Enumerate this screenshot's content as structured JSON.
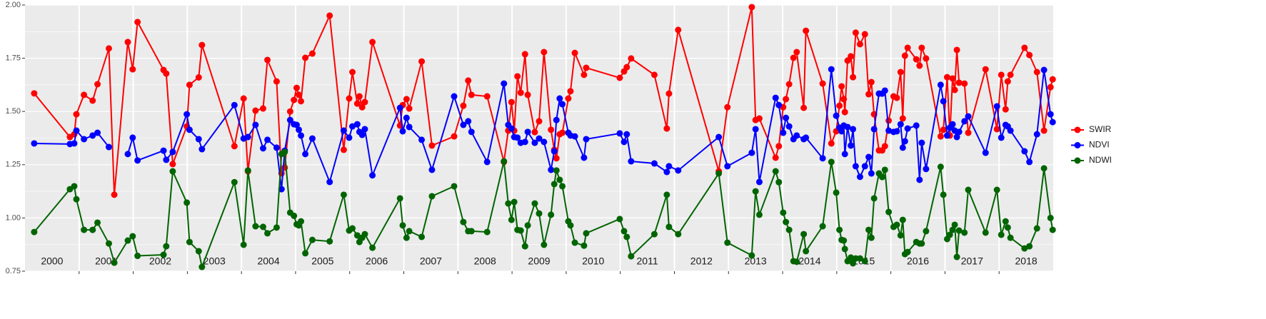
{
  "chart_data": {
    "type": "line",
    "x": [
      2000.17,
      2000.83,
      2000.91,
      2000.95,
      2001.09,
      2001.25,
      2001.34,
      2001.55,
      2001.65,
      2001.9,
      2001.99,
      2002.08,
      2002.56,
      2002.61,
      2002.73,
      2002.99,
      2003.04,
      2003.21,
      2003.27,
      2003.87,
      2004.04,
      2004.12,
      2004.26,
      2004.4,
      2004.48,
      2004.65,
      2004.74,
      2004.8,
      2004.9,
      2004.97,
      2005.02,
      2005.06,
      2005.1,
      2005.18,
      2005.31,
      2005.63,
      2005.89,
      2005.99,
      2006.05,
      2006.14,
      2006.18,
      2006.23,
      2006.28,
      2006.42,
      2006.93,
      2006.98,
      2007.05,
      2007.1,
      2007.33,
      2007.52,
      2007.93,
      2008.1,
      2008.19,
      2008.25,
      2008.54,
      2008.85,
      2008.93,
      2008.99,
      2009.04,
      2009.1,
      2009.16,
      2009.24,
      2009.29,
      2009.42,
      2009.5,
      2009.59,
      2009.72,
      2009.78,
      2009.82,
      2009.88,
      2009.93,
      2010.04,
      2010.08,
      2010.16,
      2010.33,
      2010.37,
      2010.99,
      2011.07,
      2011.12,
      2011.2,
      2011.63,
      2011.86,
      2011.9,
      2012.07,
      2012.82,
      2012.98,
      2013.43,
      2013.5,
      2013.57,
      2013.87,
      2013.93,
      2014.01,
      2014.06,
      2014.12,
      2014.2,
      2014.26,
      2014.39,
      2014.43,
      2014.74,
      2014.9,
      2014.99,
      2015.05,
      2015.09,
      2015.13,
      2015.15,
      2015.2,
      2015.26,
      2015.3,
      2015.35,
      2015.43,
      2015.52,
      2015.59,
      2015.64,
      2015.69,
      2015.78,
      2015.84,
      2015.89,
      2015.96,
      2016.05,
      2016.11,
      2016.18,
      2016.22,
      2016.26,
      2016.31,
      2016.47,
      2016.53,
      2016.57,
      2016.65,
      2016.92,
      2016.97,
      2017.04,
      2017.09,
      2017.14,
      2017.18,
      2017.22,
      2017.26,
      2017.36,
      2017.43,
      2017.75,
      2017.96,
      2018.04,
      2018.12,
      2018.16,
      2018.21,
      2018.47,
      2018.56,
      2018.7,
      2018.83,
      2018.95,
      2018.99
    ],
    "series": [
      {
        "name": "SWIR",
        "color": "#ff0000",
        "values": [
          1.585,
          1.38,
          1.393,
          1.487,
          1.578,
          1.551,
          1.628,
          1.796,
          1.109,
          1.826,
          1.698,
          1.92,
          1.695,
          1.678,
          1.253,
          1.43,
          1.625,
          1.66,
          1.812,
          1.337,
          1.561,
          1.219,
          1.504,
          1.514,
          1.742,
          1.641,
          1.209,
          1.236,
          1.5,
          1.554,
          1.611,
          1.578,
          1.548,
          1.752,
          1.772,
          1.95,
          1.32,
          1.561,
          1.685,
          1.537,
          1.571,
          1.52,
          1.544,
          1.826,
          1.434,
          1.53,
          1.558,
          1.514,
          1.735,
          1.34,
          1.383,
          1.527,
          1.645,
          1.578,
          1.571,
          1.263,
          1.41,
          1.544,
          1.41,
          1.665,
          1.588,
          1.769,
          1.578,
          1.403,
          1.454,
          1.779,
          1.414,
          1.32,
          1.28,
          1.393,
          1.4,
          1.561,
          1.595,
          1.775,
          1.672,
          1.705,
          1.658,
          1.688,
          1.708,
          1.749,
          1.672,
          1.42,
          1.584,
          1.883,
          1.219,
          1.52,
          1.99,
          1.46,
          1.467,
          1.283,
          1.337,
          1.52,
          1.558,
          1.628,
          1.752,
          1.779,
          1.517,
          1.879,
          1.631,
          1.35,
          1.407,
          1.527,
          1.618,
          1.558,
          1.497,
          1.739,
          1.759,
          1.661,
          1.87,
          1.816,
          1.863,
          1.581,
          1.638,
          1.487,
          1.317,
          1.317,
          1.337,
          1.457,
          1.571,
          1.564,
          1.685,
          1.467,
          1.762,
          1.799,
          1.745,
          1.715,
          1.799,
          1.749,
          1.383,
          1.414,
          1.661,
          1.387,
          1.655,
          1.601,
          1.789,
          1.635,
          1.631,
          1.4,
          1.698,
          1.417,
          1.672,
          1.51,
          1.641,
          1.672,
          1.799,
          1.765,
          1.685,
          1.41,
          1.614,
          1.651
        ]
      },
      {
        "name": "NDVI",
        "color": "#0000ff",
        "values": [
          1.35,
          1.347,
          1.35,
          1.41,
          1.37,
          1.387,
          1.4,
          1.333,
          null,
          1.3,
          1.377,
          1.27,
          1.316,
          1.273,
          1.31,
          1.487,
          1.414,
          1.37,
          1.323,
          1.53,
          1.373,
          1.38,
          1.437,
          1.327,
          1.367,
          1.33,
          1.135,
          1.316,
          1.46,
          1.44,
          1.437,
          1.414,
          1.387,
          1.3,
          1.373,
          1.169,
          1.41,
          1.377,
          1.43,
          1.44,
          1.404,
          1.39,
          1.417,
          1.2,
          1.517,
          1.407,
          1.47,
          1.427,
          1.367,
          1.226,
          1.571,
          1.437,
          1.454,
          1.404,
          1.263,
          1.631,
          1.437,
          1.42,
          1.38,
          1.377,
          1.353,
          1.357,
          1.404,
          1.353,
          1.373,
          1.357,
          1.226,
          1.313,
          1.46,
          1.561,
          1.534,
          1.4,
          1.387,
          1.383,
          1.283,
          1.37,
          1.397,
          1.357,
          1.393,
          1.266,
          1.256,
          1.216,
          1.243,
          1.223,
          1.38,
          1.243,
          1.306,
          1.417,
          1.169,
          1.564,
          1.53,
          1.4,
          1.47,
          1.43,
          1.37,
          1.387,
          1.37,
          1.377,
          1.28,
          1.698,
          1.48,
          1.424,
          1.407,
          1.434,
          1.3,
          1.427,
          1.34,
          1.417,
          1.243,
          1.193,
          1.243,
          1.286,
          1.209,
          1.417,
          1.584,
          1.584,
          1.598,
          1.41,
          1.404,
          1.407,
          1.44,
          1.33,
          1.36,
          1.42,
          1.434,
          1.179,
          1.353,
          1.23,
          1.625,
          1.548,
          1.387,
          1.424,
          1.44,
          1.41,
          1.38,
          1.404,
          1.454,
          1.477,
          1.306,
          1.524,
          1.377,
          1.437,
          1.43,
          1.41,
          1.313,
          1.263,
          1.393,
          1.695,
          1.487,
          1.45
        ]
      },
      {
        "name": "NDWI",
        "color": "#006400",
        "values": [
          0.934,
          1.135,
          1.149,
          1.088,
          0.944,
          0.944,
          0.978,
          0.88,
          0.79,
          0.894,
          0.914,
          0.822,
          0.827,
          0.867,
          1.219,
          1.072,
          0.887,
          0.844,
          0.77,
          1.168,
          0.874,
          1.223,
          0.961,
          0.958,
          0.928,
          0.955,
          1.3,
          1.31,
          1.025,
          1.01,
          0.97,
          0.965,
          0.984,
          0.834,
          0.897,
          0.89,
          1.109,
          0.941,
          0.951,
          0.918,
          0.887,
          0.907,
          0.924,
          0.86,
          1.092,
          0.965,
          0.907,
          0.938,
          0.911,
          1.102,
          1.149,
          0.981,
          0.938,
          0.938,
          0.934,
          1.266,
          1.068,
          0.991,
          1.075,
          0.944,
          0.941,
          0.867,
          0.965,
          1.068,
          1.021,
          0.874,
          1.015,
          1.159,
          1.223,
          1.179,
          1.149,
          0.984,
          0.965,
          0.884,
          0.87,
          0.928,
          0.995,
          0.938,
          0.911,
          0.82,
          0.924,
          1.109,
          0.958,
          0.924,
          1.209,
          0.884,
          0.824,
          1.125,
          1.015,
          1.219,
          1.168,
          1.025,
          0.981,
          0.944,
          0.797,
          0.794,
          0.924,
          0.844,
          0.961,
          1.263,
          1.119,
          0.944,
          0.897,
          0.894,
          0.854,
          0.797,
          0.814,
          0.787,
          0.81,
          0.81,
          0.797,
          0.944,
          0.907,
          1.092,
          1.209,
          1.192,
          1.226,
          1.028,
          0.958,
          0.968,
          0.918,
          0.991,
          0.83,
          0.84,
          0.887,
          0.88,
          0.88,
          0.938,
          1.24,
          1.109,
          0.901,
          0.921,
          0.944,
          0.968,
          0.817,
          0.941,
          0.931,
          1.132,
          0.931,
          1.132,
          0.921,
          0.984,
          0.955,
          0.907,
          0.857,
          0.867,
          0.951,
          1.233,
          1.0,
          0.944
        ]
      }
    ],
    "year_labels": [
      "2000",
      "2001",
      "2002",
      "2003",
      "2004",
      "2005",
      "2006",
      "2007",
      "2008",
      "2009",
      "2010",
      "2011",
      "2012",
      "2013",
      "2014",
      "2015",
      "2016",
      "2017",
      "2018"
    ],
    "xlim": [
      2000,
      2019
    ],
    "xticks": [
      2001,
      2002,
      2003,
      2004,
      2005,
      2006,
      2007,
      2008,
      2009,
      2010,
      2011,
      2012,
      2013,
      2014,
      2015,
      2016,
      2017,
      2018
    ],
    "ylim": [
      0.75,
      2.0
    ],
    "yticks": [
      0.75,
      {
        "value": 1.0,
        "label": "1.00"
      },
      1.25,
      {
        "value": 1.5,
        "label": "1.50"
      },
      1.75,
      {
        "value": 2.0,
        "label": "2.00"
      }
    ],
    "grid": true,
    "legend": "right"
  }
}
